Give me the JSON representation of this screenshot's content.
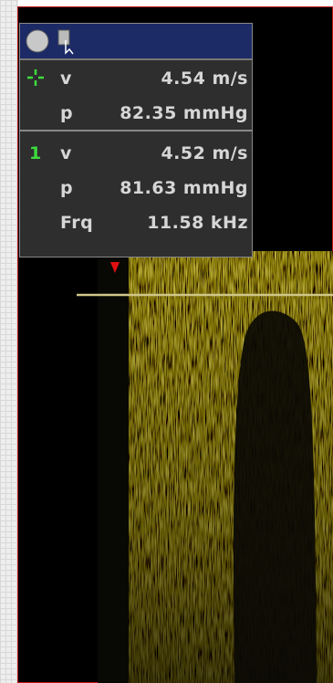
{
  "measurements": {
    "cursor_group": {
      "rows": [
        {
          "label": "v",
          "value": "4.54 m/s"
        },
        {
          "label": "p",
          "value": "82.35 mmHg"
        }
      ]
    },
    "trace_group": {
      "marker": "1",
      "rows": [
        {
          "label": "v",
          "value": "4.52 m/s"
        },
        {
          "label": "p",
          "value": "81.63 mmHg"
        },
        {
          "label": "Frq",
          "value": "11.58 kHz"
        }
      ]
    }
  }
}
